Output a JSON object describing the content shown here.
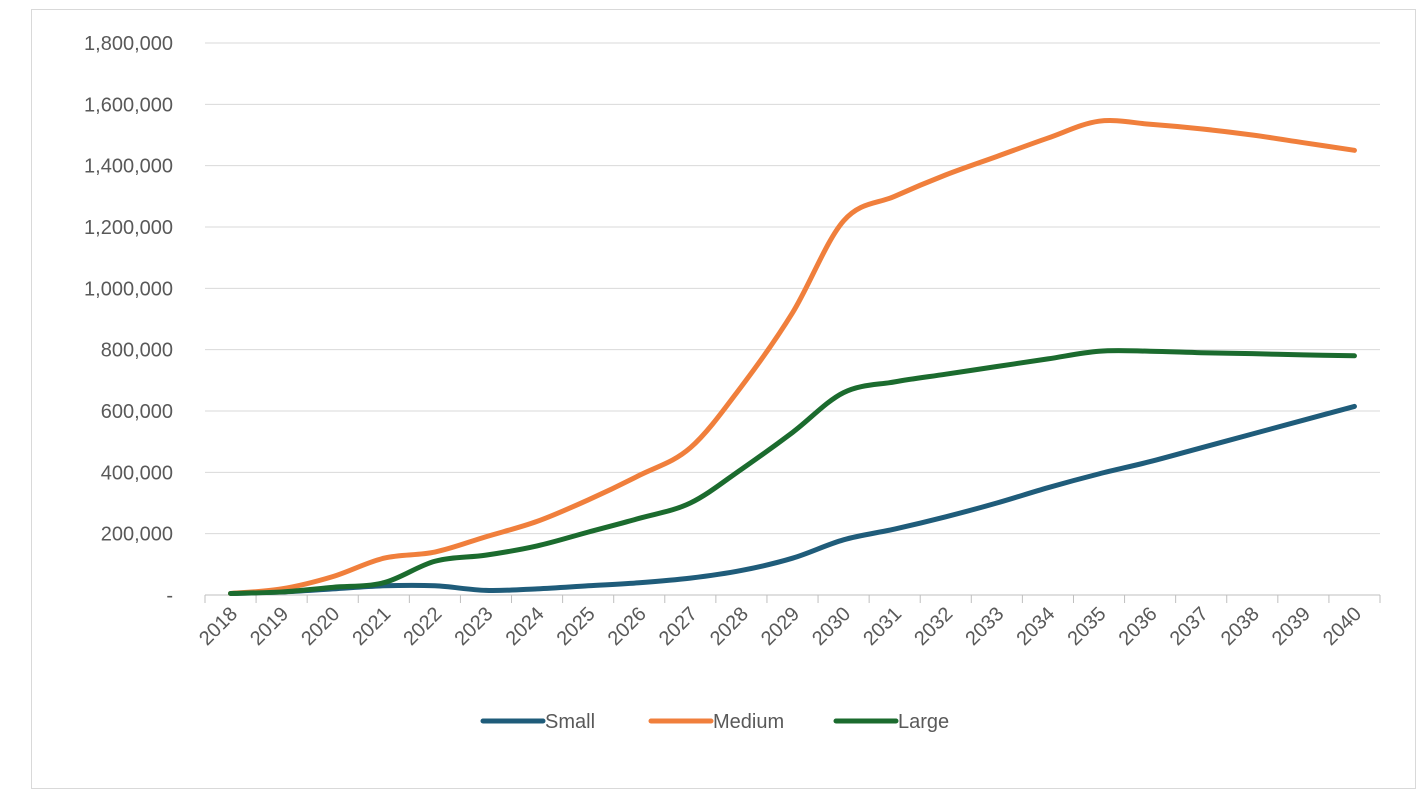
{
  "chart_data": {
    "type": "line",
    "title": "",
    "xlabel": "",
    "ylabel": "",
    "x": [
      "2018",
      "2019",
      "2020",
      "2021",
      "2022",
      "2023",
      "2024",
      "2025",
      "2026",
      "2027",
      "2028",
      "2029",
      "2030",
      "2031",
      "2032",
      "2033",
      "2034",
      "2035",
      "2036",
      "2037",
      "2038",
      "2039",
      "2040"
    ],
    "ylim": [
      0,
      1800000
    ],
    "y_ticks": [
      0,
      200000,
      400000,
      600000,
      800000,
      1000000,
      1200000,
      1400000,
      1600000,
      1800000
    ],
    "y_tick_labels": [
      "-",
      "200,000",
      "400,000",
      "600,000",
      "800,000",
      "1,000,000",
      "1,200,000",
      "1,400,000",
      "1,600,000",
      "1,800,000"
    ],
    "grid": true,
    "legend_position": "bottom",
    "series": [
      {
        "name": "Small",
        "color": "#1f5c7a",
        "values": [
          5000,
          10000,
          20000,
          30000,
          30000,
          15000,
          20000,
          30000,
          40000,
          55000,
          80000,
          120000,
          180000,
          215000,
          255000,
          300000,
          350000,
          395000,
          435000,
          480000,
          525000,
          570000,
          615000
        ]
      },
      {
        "name": "Medium",
        "color": "#f07f3c",
        "values": [
          5000,
          20000,
          60000,
          120000,
          140000,
          190000,
          240000,
          310000,
          390000,
          480000,
          680000,
          920000,
          1220000,
          1300000,
          1370000,
          1430000,
          1490000,
          1545000,
          1535000,
          1520000,
          1500000,
          1475000,
          1450000
        ]
      },
      {
        "name": "Large",
        "color": "#1b6b2e",
        "values": [
          5000,
          10000,
          25000,
          40000,
          110000,
          130000,
          160000,
          205000,
          250000,
          300000,
          410000,
          530000,
          660000,
          695000,
          720000,
          745000,
          770000,
          795000,
          795000,
          790000,
          787000,
          783000,
          780000
        ]
      }
    ]
  }
}
